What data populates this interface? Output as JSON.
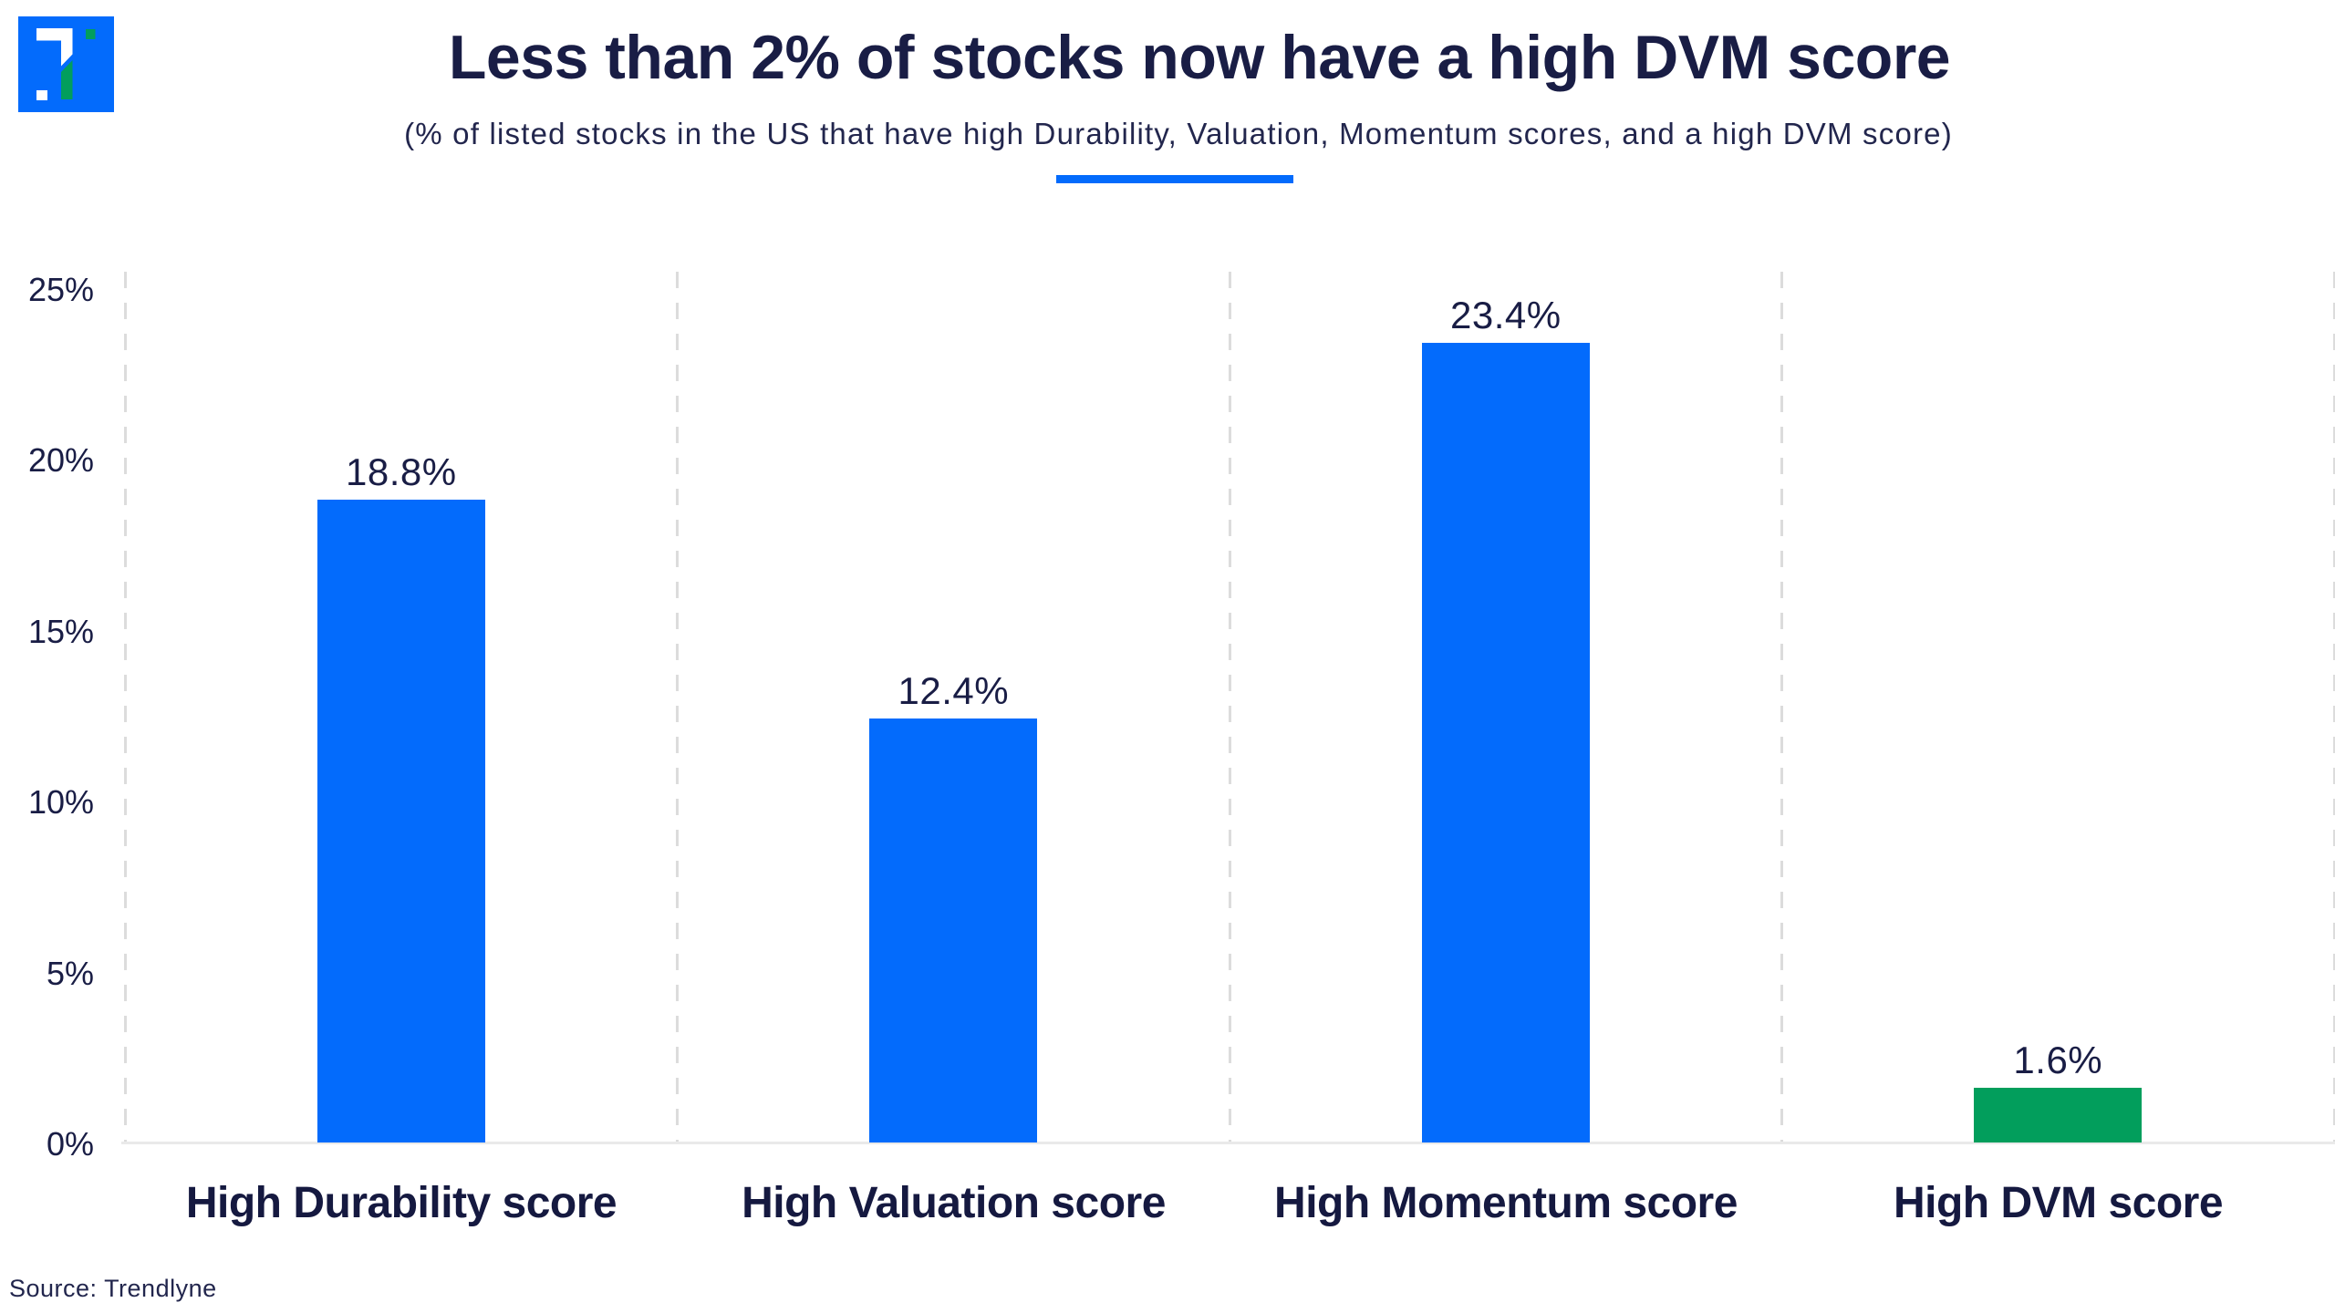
{
  "header": {
    "title": "Less than 2% of stocks now have a high DVM score",
    "subtitle": "(% of listed stocks in the US that have high Durability, Valuation, Momentum scores, and a high DVM score)"
  },
  "logo": {
    "name": "trendlyne-logo",
    "square_color": "#036bfc",
    "glyph_white": "#ffffff",
    "glyph_green": "#029e5c"
  },
  "chart_data": {
    "type": "bar",
    "title": "Less than 2% of stocks now have a high DVM score",
    "subtitle": "(% of listed stocks in the US that have high Durability, Valuation, Momentum scores, and a high DVM score)",
    "categories": [
      "High Durability score",
      "High Valuation score",
      "High Momentum score",
      "High DVM score"
    ],
    "values": [
      18.8,
      12.4,
      23.4,
      1.6
    ],
    "value_labels": [
      "18.8%",
      "12.4%",
      "23.4%",
      "1.6%"
    ],
    "bar_colors": [
      "#036bfc",
      "#036bfc",
      "#036bfc",
      "#029e5c"
    ],
    "xlabel": "",
    "ylabel": "",
    "ylim": [
      0,
      25
    ],
    "yticks": [
      {
        "value": 25,
        "label": "25%"
      },
      {
        "value": 20,
        "label": "20%"
      },
      {
        "value": 15,
        "label": "15%"
      },
      {
        "value": 10,
        "label": "10%"
      },
      {
        "value": 5,
        "label": "5%"
      },
      {
        "value": 0,
        "label": "0%"
      }
    ],
    "grid": {
      "horizontal": false,
      "vertical": "dashed lines at category boundaries"
    },
    "legend": "none",
    "accent_underline_color": "#036bfc"
  },
  "footer": {
    "source": "Source: Trendlyne"
  },
  "colors": {
    "background": "#ffffff",
    "text_navy": "#191d45",
    "bar_blue": "#036bfc",
    "bar_green": "#029e5c",
    "gridline": "#dcdcdc",
    "baseline": "#e9e9e9"
  }
}
